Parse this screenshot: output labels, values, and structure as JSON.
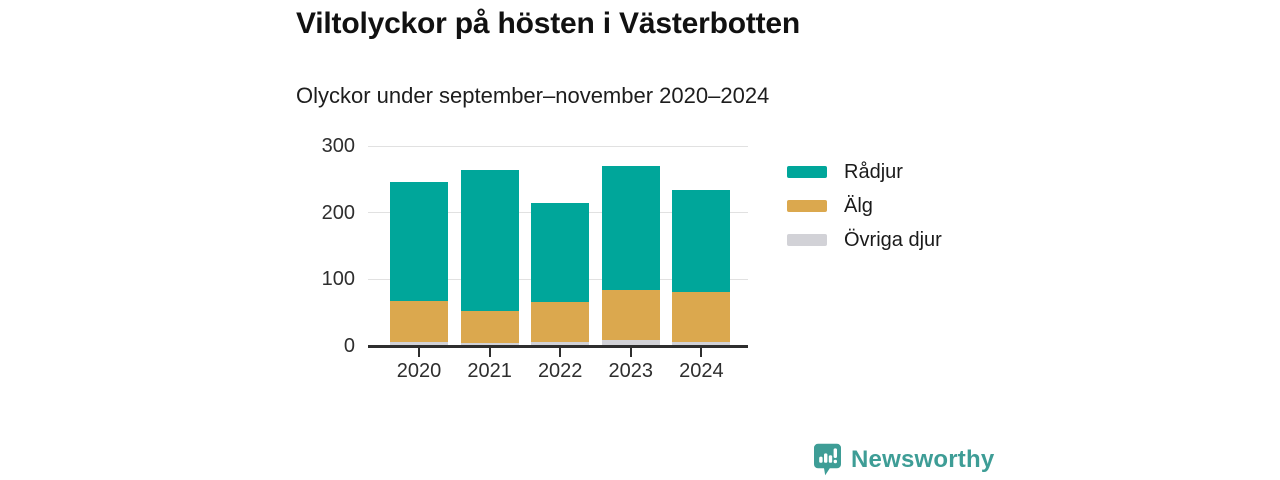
{
  "header": {
    "title": "Viltolyckor på hösten i Västerbotten",
    "subtitle": "Olyckor under september–november 2020–2024"
  },
  "chart_data": {
    "type": "bar",
    "stacked": true,
    "title": "Viltolyckor på hösten i Västerbotten",
    "subtitle": "Olyckor under september–november 2020–2024",
    "categories": [
      "2020",
      "2021",
      "2022",
      "2023",
      "2024"
    ],
    "series": [
      {
        "name": "Övriga djur",
        "color": "#d2d2d7",
        "values": [
          5,
          4,
          6,
          8,
          5
        ]
      },
      {
        "name": "Älg",
        "color": "#dba84e",
        "values": [
          62,
          48,
          59,
          75,
          76
        ]
      },
      {
        "name": "Rådjur",
        "color": "#00a69a",
        "values": [
          178,
          211,
          149,
          187,
          152
        ]
      }
    ],
    "totals": [
      245,
      263,
      214,
      270,
      233
    ],
    "xlabel": "",
    "ylabel": "",
    "yticks": [
      0,
      100,
      200,
      300
    ],
    "ylim": [
      0,
      300
    ],
    "grid": "horizontal",
    "legend_position": "right",
    "legend_order": [
      "Rådjur",
      "Älg",
      "Övriga djur"
    ]
  },
  "brand": {
    "name": "Newsworthy",
    "color": "#3e9d96"
  }
}
